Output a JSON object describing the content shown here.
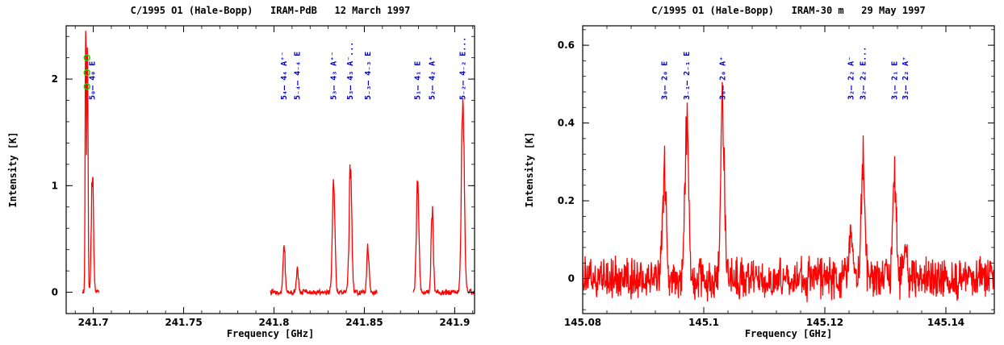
{
  "chart_data": [
    {
      "type": "line",
      "title": "C/1995 O1 (Hale-Bopp)   IRAM-PdB   12 March 1997",
      "xlabel": "Frequency [GHz]",
      "ylabel": "Intensity [K]",
      "xlim": [
        241.685,
        241.911
      ],
      "ylim": [
        -0.2,
        2.5
      ],
      "xticks": [
        241.7,
        241.75,
        241.8,
        241.85,
        241.9
      ],
      "xtick_labels": [
        "241.7",
        "241.75",
        "241.8",
        "241.85",
        "241.9"
      ],
      "yticks": [
        0,
        1,
        2
      ],
      "ytick_labels": [
        "0",
        "1",
        "2"
      ],
      "line_color": "#ff0000",
      "label_color": "#0000cc",
      "marker_color": "#22cc00",
      "segments": [
        [
          241.694,
          241.703
        ],
        [
          241.798,
          241.857
        ],
        [
          241.877,
          241.911
        ]
      ],
      "noise": 0.02,
      "peaks": [
        {
          "x": 241.6958,
          "y": 2.5,
          "w": 0.0003
        },
        {
          "x": 241.6968,
          "y": 2.5,
          "w": 0.0003
        },
        {
          "x": 241.6995,
          "y": 1.12,
          "w": 0.0006
        },
        {
          "x": 241.8056,
          "y": 0.45,
          "w": 0.0006
        },
        {
          "x": 241.813,
          "y": 0.2,
          "w": 0.0006
        },
        {
          "x": 241.833,
          "y": 1.1,
          "w": 0.0007
        },
        {
          "x": 241.8423,
          "y": 1.18,
          "w": 0.0007
        },
        {
          "x": 241.852,
          "y": 0.42,
          "w": 0.0006
        },
        {
          "x": 241.8795,
          "y": 1.05,
          "w": 0.0007
        },
        {
          "x": 241.8876,
          "y": 0.78,
          "w": 0.0006
        },
        {
          "x": 241.9045,
          "y": 1.75,
          "w": 0.0008
        }
      ],
      "markers": [
        {
          "x": 241.6965,
          "y": 2.2
        },
        {
          "x": 241.6965,
          "y": 2.06
        },
        {
          "x": 241.6965,
          "y": 1.93
        }
      ],
      "labels": [
        {
          "x": 241.6995,
          "text": "5₀– 4₀ E"
        },
        {
          "x": 241.8056,
          "text": "5₄– 4₄ A⁺⁻"
        },
        {
          "x": 241.813,
          "text": "5₋₄– 4₋₄ E"
        },
        {
          "x": 241.833,
          "text": "5₃– 4₃ A⁺⁻"
        },
        {
          "x": 241.8423,
          "text": "5₃– 4₃ A⁻..."
        },
        {
          "x": 241.852,
          "text": "5₋₃– 4₋₃ E"
        },
        {
          "x": 241.8795,
          "text": "5₁– 4₁ E"
        },
        {
          "x": 241.8876,
          "text": "5₂– 4₂ A⁺"
        },
        {
          "x": 241.9045,
          "text": "5₋₂– 4₋₂ E..."
        }
      ]
    },
    {
      "type": "line",
      "title": "C/1995 O1 (Hale-Bopp)   IRAM-30 m   29 May 1997",
      "xlabel": "Frequency [GHz]",
      "ylabel": "Intensity [K]",
      "xlim": [
        145.08,
        145.148
      ],
      "ylim": [
        -0.09,
        0.65
      ],
      "xticks": [
        145.08,
        145.1,
        145.12,
        145.14
      ],
      "xtick_labels": [
        "145.08",
        "145.1",
        "145.12",
        "145.14"
      ],
      "yticks": [
        0,
        0.2,
        0.4,
        0.6
      ],
      "ytick_labels": [
        "0",
        "0.2",
        "0.4",
        "0.6"
      ],
      "line_color": "#ff0000",
      "label_color": "#0000cc",
      "segments": [
        [
          145.08,
          145.148
        ]
      ],
      "noise": 0.04,
      "peaks": [
        {
          "x": 145.0935,
          "y": 0.28,
          "w": 0.0003
        },
        {
          "x": 145.0972,
          "y": 0.41,
          "w": 0.0003
        },
        {
          "x": 145.1031,
          "y": 0.46,
          "w": 0.0003
        },
        {
          "x": 145.1243,
          "y": 0.13,
          "w": 0.0003
        },
        {
          "x": 145.1263,
          "y": 0.28,
          "w": 0.0003
        },
        {
          "x": 145.1315,
          "y": 0.27,
          "w": 0.0003
        },
        {
          "x": 145.1333,
          "y": 0.1,
          "w": 0.0003
        }
      ],
      "labels": [
        {
          "x": 145.0935,
          "text": "3₀– 2₀ E"
        },
        {
          "x": 145.0972,
          "text": "3₋₁– 2₋₁ E"
        },
        {
          "x": 145.1031,
          "text": "3₀– 2₀ A⁺"
        },
        {
          "x": 145.1243,
          "text": "3₂– 2₂ A⁻"
        },
        {
          "x": 145.1263,
          "text": "3₂– 2₂ E..."
        },
        {
          "x": 145.1315,
          "text": "3₁– 2₁ E"
        },
        {
          "x": 145.1333,
          "text": "3₂– 2₂ A⁺"
        }
      ]
    }
  ]
}
